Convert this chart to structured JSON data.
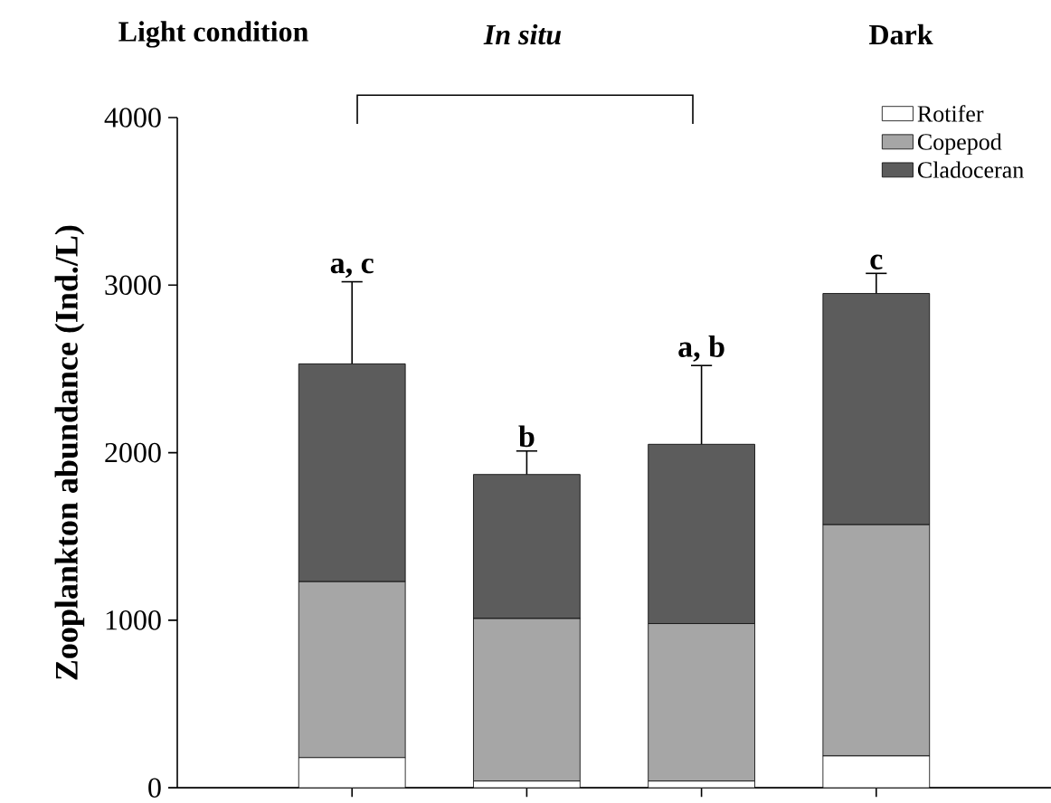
{
  "chart_data": {
    "type": "bar",
    "stacked": true,
    "categories": [
      null,
      null,
      null,
      null
    ],
    "ylabel": "Zooplankton abundance (Ind./L)",
    "series": [
      {
        "name": "Rotifer",
        "color": "#ffffff",
        "values": [
          180,
          40,
          40,
          190
        ]
      },
      {
        "name": "Copepod",
        "color": "#a6a6a6",
        "values": [
          1050,
          970,
          940,
          1380
        ]
      },
      {
        "name": "Cladoceran",
        "color": "#5c5c5c",
        "values": [
          1300,
          860,
          1070,
          1380
        ],
        "errors": [
          [
            2530,
            3020
          ],
          [
            1870,
            2010
          ],
          [
            2050,
            2520
          ],
          [
            2950,
            3070
          ]
        ]
      }
    ],
    "annotations": [
      "Light condition",
      "*In situ*",
      "Dark",
      "a, c",
      "b",
      "a, b",
      "c"
    ],
    "ylim": [
      0,
      4000
    ],
    "yticks": [
      0,
      1000,
      2000,
      3000,
      4000
    ],
    "tick_labels": "y",
    "legend": "top right",
    "grid": false
  }
}
